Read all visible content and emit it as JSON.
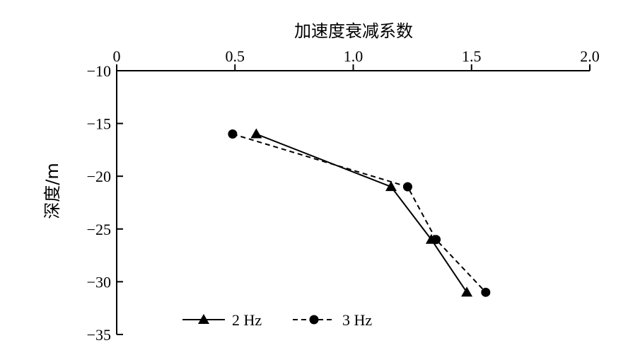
{
  "chart_data": {
    "type": "line",
    "xlabel": "加速度衰减系数",
    "ylabel": "深度/m",
    "xlim": [
      0,
      2.0
    ],
    "ylim": [
      -35,
      -10
    ],
    "x_axis_position": "top",
    "x_ticks": [
      0,
      0.5,
      1.0,
      1.5,
      2.0
    ],
    "x_tick_labels": [
      "0",
      "0.5",
      "1.0",
      "1.5",
      "2.0"
    ],
    "y_ticks": [
      -10,
      -15,
      -20,
      -25,
      -30,
      -35
    ],
    "y_tick_labels": [
      "−10",
      "−15",
      "−20",
      "−25",
      "−30",
      "−35"
    ],
    "grid": false,
    "legend_position": "bottom-left",
    "series": [
      {
        "name": "2 Hz",
        "line_style": "solid",
        "marker": "triangle",
        "color": "#000000",
        "points": [
          {
            "x": 0.59,
            "y": -16
          },
          {
            "x": 1.16,
            "y": -21
          },
          {
            "x": 1.33,
            "y": -26
          },
          {
            "x": 1.48,
            "y": -31
          }
        ]
      },
      {
        "name": "3 Hz",
        "line_style": "dashed",
        "marker": "circle",
        "color": "#000000",
        "points": [
          {
            "x": 0.49,
            "y": -16
          },
          {
            "x": 1.23,
            "y": -21
          },
          {
            "x": 1.35,
            "y": -26
          },
          {
            "x": 1.56,
            "y": -31
          }
        ]
      }
    ]
  }
}
